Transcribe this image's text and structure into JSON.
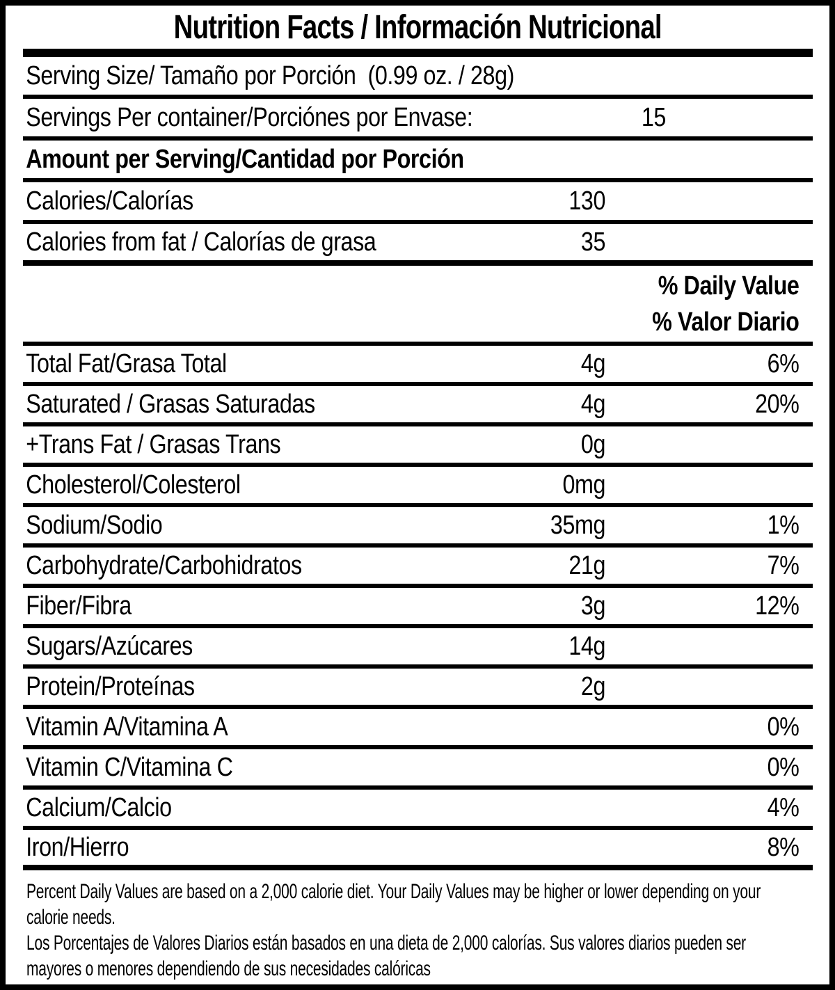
{
  "title": "Nutrition Facts / Información Nutricional",
  "colors": {
    "ink": "#000000",
    "paper": "#ffffff"
  },
  "table": {
    "rows": [
      {
        "label": "Serving Size/ Tamaño por Porción  (0.99 oz. / 28g)",
        "amount": "",
        "dv": ""
      },
      {
        "label": "Servings Per container/Porciónes por Envase:",
        "amount": "15",
        "dv": ""
      },
      {
        "label": "Amount per Serving/Cantidad por Porción",
        "amount": "",
        "dv": ""
      },
      {
        "label": "Calories/Calorías",
        "amount": "130",
        "dv": ""
      },
      {
        "label": "Calories from fat / Calorías de grasa",
        "amount": "35",
        "dv": ""
      },
      {
        "label": "Total Fat/Grasa Total",
        "amount": "4g",
        "dv": "6%"
      },
      {
        "label": "Saturated / Grasas Saturadas",
        "amount": "4g",
        "dv": "20%"
      },
      {
        "label": "+Trans Fat / Grasas Trans",
        "amount": "0g",
        "dv": ""
      },
      {
        "label": "Cholesterol/Colesterol",
        "amount": "0mg",
        "dv": ""
      },
      {
        "label": "Sodium/Sodio",
        "amount": "35mg",
        "dv": "1%"
      },
      {
        "label": "Carbohydrate/Carbohidratos",
        "amount": "21g",
        "dv": "7%"
      },
      {
        "label": "Fiber/Fibra",
        "amount": "3g",
        "dv": "12%"
      },
      {
        "label": "Sugars/Azúcares",
        "amount": "14g",
        "dv": ""
      },
      {
        "label": "Protein/Proteínas",
        "amount": "2g",
        "dv": ""
      },
      {
        "label": "Vitamin A/Vitamina A",
        "amount": "",
        "dv": "0%"
      },
      {
        "label": "Vitamin C/Vitamina C",
        "amount": "",
        "dv": "0%"
      },
      {
        "label": "Calcium/Calcio",
        "amount": "",
        "dv": "4%"
      },
      {
        "label": "Iron/Hierro",
        "amount": "",
        "dv": "8%"
      }
    ],
    "dv_header": {
      "line1": "% Daily Value",
      "line2": "% Valor Diario"
    }
  },
  "footer": {
    "lines": [
      "Percent Daily Values are based on a 2,000 calorie diet. Your Daily Values may be higher or lower depending on your",
      "calorie needs.",
      "Los Porcentajes de Valores Diarios están basados en una dieta de 2,000 calorías. Sus valores diarios pueden ser",
      "mayores o menores dependiendo de sus necesidades calóricas"
    ]
  }
}
